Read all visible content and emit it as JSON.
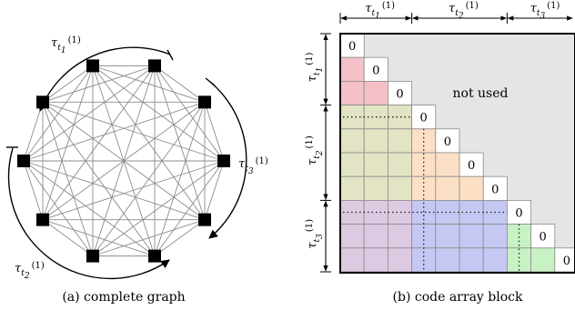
{
  "graph": {
    "caption": "(a) complete graph",
    "node_count": 10,
    "labels": {
      "t1": {
        "tau": "τ",
        "sub": "t",
        "subsub": "1",
        "sup": "(1)"
      },
      "t2": {
        "tau": "τ",
        "sub": "t",
        "subsub": "2",
        "sup": "(1)"
      },
      "t3": {
        "tau": "τ",
        "sub": "t",
        "subsub": "3",
        "sup": "(1)"
      }
    }
  },
  "block": {
    "caption": "(b) code array block",
    "not_used": "not used",
    "zero": "0",
    "groups": [
      {
        "name": "t1",
        "size": 3,
        "tau": "τ",
        "sub": "t",
        "subsub": "1",
        "sup": "(1)",
        "color": "#f5c0c8"
      },
      {
        "name": "t2",
        "size": 4,
        "tau": "τ",
        "sub": "t",
        "subsub": "2",
        "sup": "(1)",
        "color": "#fce0c6"
      },
      {
        "name": "t3",
        "size": 3,
        "tau": "τ",
        "sub": "t",
        "subsub": "3",
        "sup": "(1)",
        "color": "#c9f2c4"
      }
    ],
    "offdiag_colors": {
      "t2_t1": "#e2e4c4",
      "t3_t1": "#dcc9e2",
      "t3_t2": "#c4c8f2"
    },
    "unused_color": "#e5e5e5"
  }
}
